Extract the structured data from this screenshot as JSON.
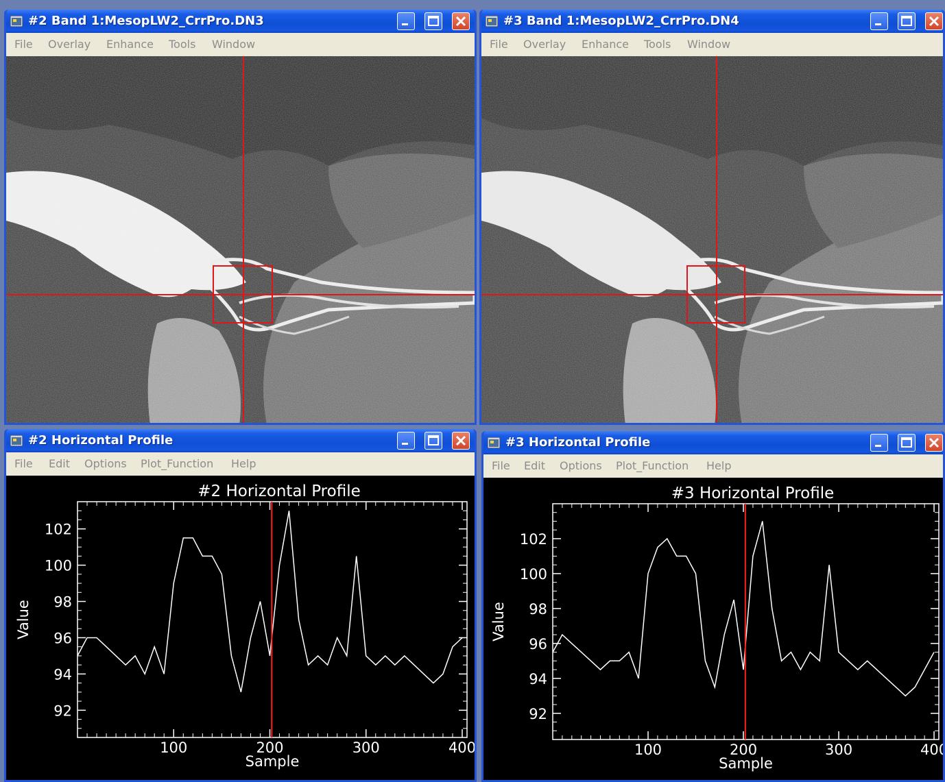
{
  "image_windows": [
    {
      "title": "#2 Band 1:MesopLW2_CrrPro.DN3",
      "menu": [
        "File",
        "Overlay",
        "Enhance",
        "Tools",
        "Window"
      ]
    },
    {
      "title": "#3 Band 1:MesopLW2_CrrPro.DN4",
      "menu": [
        "File",
        "Overlay",
        "Enhance",
        "Tools",
        "Window"
      ]
    }
  ],
  "profile_windows": [
    {
      "title": "#2 Horizontal Profile",
      "menu": [
        "File",
        "Edit",
        "Options",
        "Plot_Function",
        "Help"
      ]
    },
    {
      "title": "#3 Horizontal Profile",
      "menu": [
        "File",
        "Edit",
        "Options",
        "Plot_Function",
        "Help"
      ]
    }
  ],
  "colors": {
    "titlebar": "#0f4fd6",
    "menubar_bg": "#ece9d8",
    "menubar_text": "#8c8c8c",
    "plot_bg": "#000000",
    "plot_line": "#ffffff",
    "cursor": "#ff2020",
    "crosshair": "#e0161a"
  },
  "chart_data": [
    {
      "type": "line",
      "title": "#2 Horizontal Profile",
      "xlabel": "Sample",
      "ylabel": "Value",
      "xlim": [
        0,
        405
      ],
      "ylim": [
        90.5,
        103.5
      ],
      "xticks": [
        100,
        200,
        300,
        400
      ],
      "xtick_labels": [
        "100",
        "200",
        "300",
        "400"
      ],
      "yticks": [
        92,
        94,
        96,
        98,
        100,
        102
      ],
      "cursor_x": 202,
      "series": [
        {
          "x": [
            0,
            10,
            20,
            30,
            40,
            50,
            60,
            70,
            80,
            90,
            100,
            110,
            120,
            130,
            140,
            150,
            160,
            170,
            180,
            190,
            200,
            210,
            220,
            230,
            240,
            250,
            260,
            270,
            280,
            290,
            300,
            310,
            320,
            330,
            340,
            350,
            360,
            370,
            380,
            390,
            400
          ],
          "values": [
            95,
            96,
            96,
            95.5,
            95,
            94.5,
            95,
            94,
            95.5,
            94,
            99,
            101.5,
            101.5,
            100.5,
            100.5,
            99.5,
            95,
            93,
            96,
            98,
            95,
            100,
            103,
            97,
            94.5,
            95,
            94.5,
            96,
            95,
            100.5,
            95,
            94.5,
            95,
            94.5,
            95,
            94.5,
            94,
            93.5,
            94,
            95.5,
            96
          ]
        }
      ]
    },
    {
      "type": "line",
      "title": "#3 Horizontal Profile",
      "xlabel": "Sample",
      "ylabel": "Value",
      "xlim": [
        0,
        405
      ],
      "ylim": [
        90.5,
        104
      ],
      "xticks": [
        100,
        200,
        300,
        400
      ],
      "xtick_labels": [
        "100",
        "200",
        "300",
        "400"
      ],
      "yticks": [
        92,
        94,
        96,
        98,
        100,
        102
      ],
      "cursor_x": 202,
      "series": [
        {
          "x": [
            0,
            10,
            20,
            30,
            40,
            50,
            60,
            70,
            80,
            90,
            100,
            110,
            120,
            130,
            140,
            150,
            160,
            170,
            180,
            190,
            200,
            210,
            220,
            230,
            240,
            250,
            260,
            270,
            280,
            290,
            300,
            310,
            320,
            330,
            340,
            350,
            360,
            370,
            380,
            390,
            400
          ],
          "values": [
            95.5,
            96.5,
            96,
            95.5,
            95,
            94.5,
            95,
            95,
            95.5,
            94,
            100,
            101.5,
            102,
            101,
            101,
            100,
            95,
            93.5,
            96.5,
            98.5,
            94.5,
            101,
            103,
            98,
            95,
            95.5,
            94.5,
            95.5,
            95,
            100.5,
            95.5,
            95,
            94.5,
            95,
            94.5,
            94,
            93.5,
            93,
            93.5,
            94.5,
            95.5
          ]
        }
      ]
    }
  ]
}
